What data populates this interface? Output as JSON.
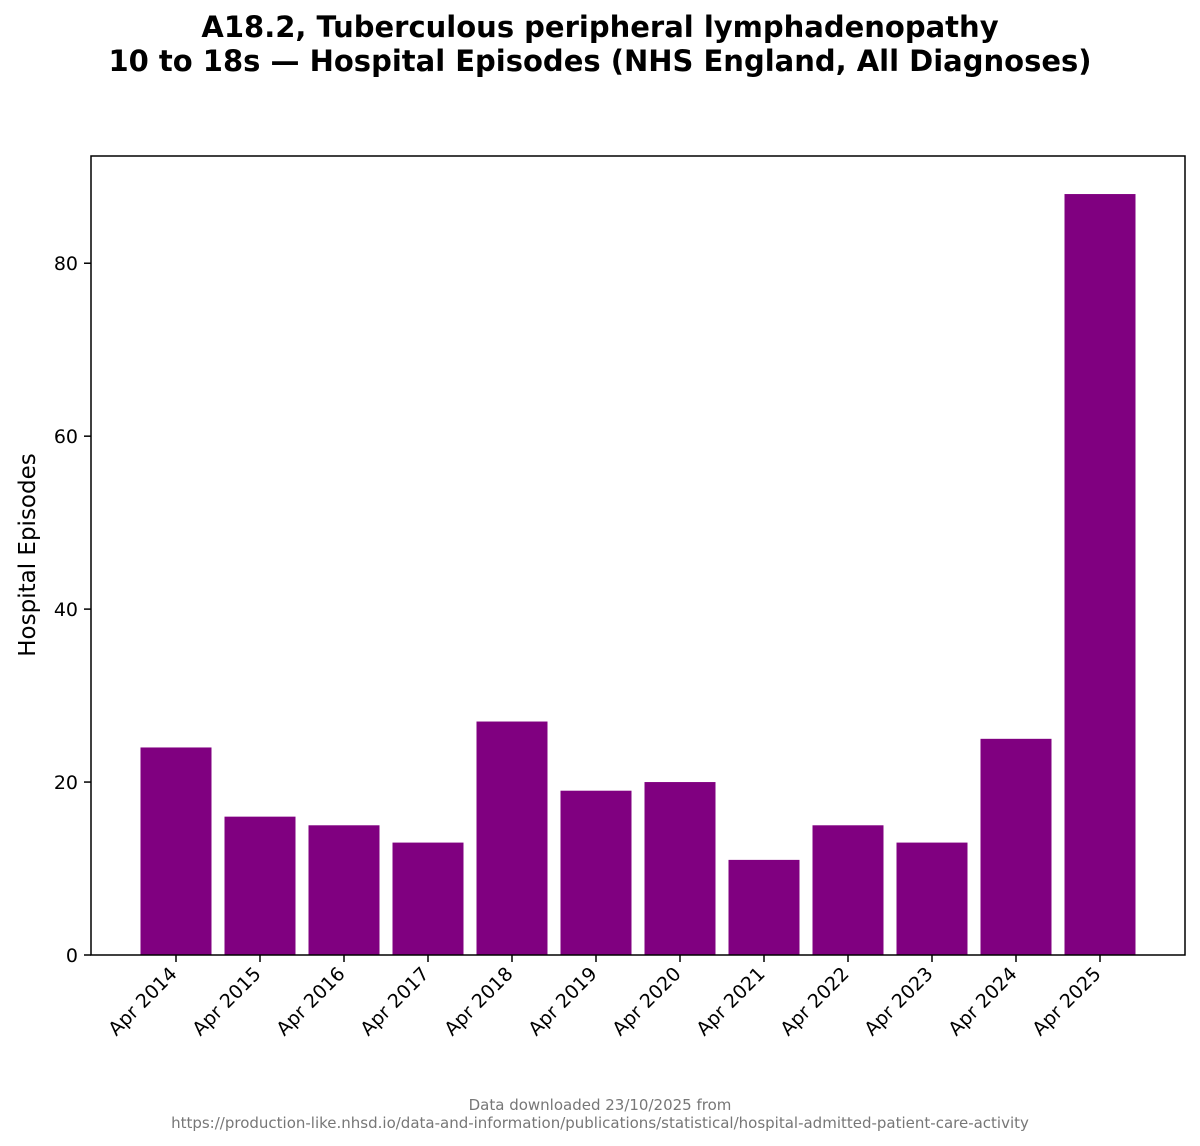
{
  "chart_data": {
    "type": "bar",
    "title_line1": "A18.2, Tuberculous peripheral lymphadenopathy",
    "title_line2": "10 to 18s — Hospital Episodes (NHS England, All Diagnoses)",
    "xlabel": "",
    "ylabel": "Hospital Episodes",
    "categories": [
      "Apr 2014",
      "Apr 2015",
      "Apr 2016",
      "Apr 2017",
      "Apr 2018",
      "Apr 2019",
      "Apr 2020",
      "Apr 2021",
      "Apr 2022",
      "Apr 2023",
      "Apr 2024",
      "Apr 2025"
    ],
    "values": [
      24,
      16,
      15,
      13,
      27,
      19,
      20,
      11,
      15,
      13,
      25,
      88
    ],
    "ylim": [
      0,
      92.4
    ],
    "yticks": [
      0,
      20,
      40,
      60,
      80
    ],
    "bar_color": "#800080",
    "grid": false
  },
  "footer": {
    "line1": "Data downloaded 23/10/2025 from",
    "line2": "https://production-like.nhsd.io/data-and-information/publications/statistical/hospital-admitted-patient-care-activity"
  }
}
